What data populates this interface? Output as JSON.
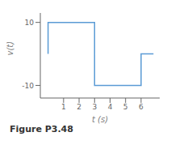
{
  "chart_data": {
    "type": "line",
    "title": "Figure P3.48",
    "x": [
      0,
      0,
      3,
      3,
      6,
      6,
      6.8
    ],
    "series": [
      {
        "name": "v(t)",
        "color": "#5b9bd5",
        "values": [
          0,
          10,
          10,
          -10,
          -10,
          0,
          0
        ]
      }
    ],
    "xlabel": "t (s)",
    "ylabel": "v(t)",
    "xlim": [
      -0.5,
      7.2
    ],
    "ylim": [
      -14,
      13
    ],
    "xticks": [
      1,
      2,
      3,
      4,
      5,
      6
    ],
    "yticks": [
      10,
      -10
    ]
  }
}
